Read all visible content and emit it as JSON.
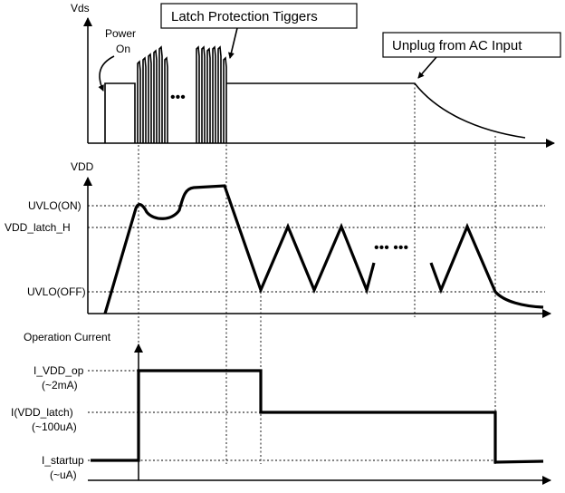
{
  "panel1": {
    "y_label": "Vds",
    "power_on_line1": "Power",
    "power_on_line2": "On",
    "dots": "•••",
    "latch_callout": "Latch Protection Tiggers",
    "unplug_callout": "Unplug from AC Input"
  },
  "panel2": {
    "y_label": "VDD",
    "levels": {
      "uvlo_on": "UVLO(ON)",
      "vdd_latch_h": "VDD_latch_H",
      "uvlo_off": "UVLO(OFF)"
    },
    "dots": "•••  •••"
  },
  "panel3": {
    "y_label": "Operation Current",
    "levels": {
      "i_vdd_op": "I_VDD_op",
      "i_vdd_op_value": "(~2mA)",
      "i_vdd_latch": "I(VDD_latch)",
      "i_vdd_latch_value": "(~100uA)",
      "i_startup": "I_startup",
      "i_startup_value": "(~uA)"
    }
  }
}
